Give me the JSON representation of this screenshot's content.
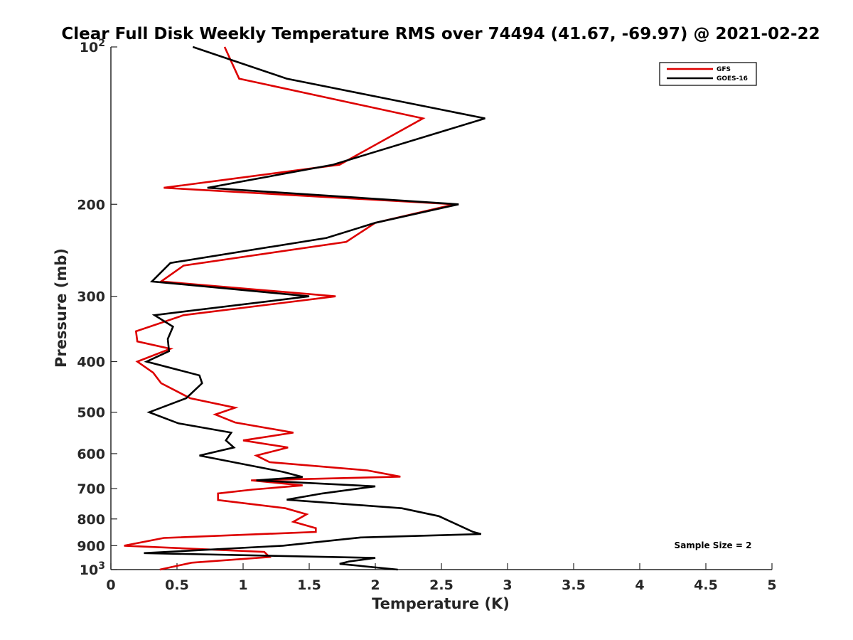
{
  "chart_data": {
    "type": "line",
    "title": "Clear Full Disk Weekly Temperature RMS over 74494 (41.67, -69.97) @ 2021-02-22",
    "xlabel": "Temperature (K)",
    "ylabel": "Pressure (mb)",
    "xlim": [
      0,
      5
    ],
    "ylim": [
      100,
      1000
    ],
    "yscale": "log",
    "yreverse": true,
    "x_ticks": [
      0,
      0.5,
      1,
      1.5,
      2,
      2.5,
      3,
      3.5,
      4,
      4.5,
      5
    ],
    "x_tick_labels": [
      "0",
      "0.5",
      "1",
      "1.5",
      "2",
      "2.5",
      "3",
      "3.5",
      "4",
      "4.5",
      "5"
    ],
    "y_ticks": [
      100,
      200,
      300,
      400,
      500,
      600,
      700,
      800,
      900,
      1000
    ],
    "y_tick_labels": [
      {
        "base": "10",
        "exp": "2"
      },
      {
        "base": "200",
        "exp": ""
      },
      {
        "base": "300",
        "exp": ""
      },
      {
        "base": "400",
        "exp": ""
      },
      {
        "base": "500",
        "exp": ""
      },
      {
        "base": "600",
        "exp": ""
      },
      {
        "base": "700",
        "exp": ""
      },
      {
        "base": "800",
        "exp": ""
      },
      {
        "base": "900",
        "exp": ""
      },
      {
        "base": "10",
        "exp": "3"
      }
    ],
    "legend_position": "top-right",
    "annotation": "Sample Size = 2",
    "series": [
      {
        "name": "GFS",
        "color": "#dd0000",
        "points": [
          [
            0.86,
            100
          ],
          [
            0.97,
            115
          ],
          [
            2.36,
            137
          ],
          [
            1.73,
            168
          ],
          [
            0.4,
            186
          ],
          [
            2.6,
            200
          ],
          [
            2.0,
            217
          ],
          [
            1.78,
            236
          ],
          [
            0.55,
            262
          ],
          [
            0.38,
            281
          ],
          [
            1.7,
            300
          ],
          [
            0.55,
            326
          ],
          [
            0.19,
            350
          ],
          [
            0.2,
            366
          ],
          [
            0.45,
            378
          ],
          [
            0.2,
            400
          ],
          [
            0.32,
            420
          ],
          [
            0.38,
            440
          ],
          [
            0.6,
            470
          ],
          [
            0.94,
            490
          ],
          [
            0.79,
            505
          ],
          [
            0.94,
            523
          ],
          [
            1.38,
            547
          ],
          [
            1.0,
            566
          ],
          [
            1.34,
            584
          ],
          [
            1.1,
            605
          ],
          [
            1.2,
            623
          ],
          [
            1.94,
            646
          ],
          [
            2.19,
            664
          ],
          [
            1.06,
            675
          ],
          [
            1.45,
            690
          ],
          [
            1.07,
            703
          ],
          [
            0.81,
            715
          ],
          [
            0.81,
            736
          ],
          [
            1.32,
            763
          ],
          [
            1.48,
            784
          ],
          [
            1.38,
            810
          ],
          [
            1.55,
            833
          ],
          [
            1.55,
            847
          ],
          [
            0.4,
            870
          ],
          [
            0.1,
            900
          ],
          [
            1.16,
            925
          ],
          [
            1.2,
            946
          ],
          [
            0.61,
            970
          ],
          [
            0.37,
            1000
          ]
        ]
      },
      {
        "name": "GOES-16",
        "color": "#000000",
        "points": [
          [
            0.62,
            100
          ],
          [
            1.33,
            115
          ],
          [
            2.83,
            137
          ],
          [
            1.68,
            168
          ],
          [
            0.73,
            186
          ],
          [
            2.63,
            200
          ],
          [
            2.0,
            217
          ],
          [
            1.63,
            232
          ],
          [
            0.45,
            259
          ],
          [
            0.31,
            281
          ],
          [
            1.5,
            300
          ],
          [
            0.33,
            326
          ],
          [
            0.47,
            343
          ],
          [
            0.43,
            362
          ],
          [
            0.44,
            382
          ],
          [
            0.27,
            400
          ],
          [
            0.67,
            425
          ],
          [
            0.69,
            440
          ],
          [
            0.57,
            470
          ],
          [
            0.29,
            500
          ],
          [
            0.51,
            525
          ],
          [
            0.91,
            547
          ],
          [
            0.87,
            566
          ],
          [
            0.93,
            584
          ],
          [
            0.67,
            605
          ],
          [
            1.3,
            650
          ],
          [
            1.45,
            665
          ],
          [
            1.1,
            675
          ],
          [
            2.0,
            693
          ],
          [
            1.6,
            715
          ],
          [
            1.33,
            735
          ],
          [
            2.2,
            763
          ],
          [
            2.48,
            790
          ],
          [
            2.74,
            847
          ],
          [
            2.8,
            855
          ],
          [
            1.89,
            868
          ],
          [
            1.3,
            900
          ],
          [
            0.25,
            930
          ],
          [
            2.0,
            950
          ],
          [
            1.8,
            965
          ],
          [
            1.73,
            975
          ],
          [
            2.17,
            1000
          ]
        ]
      }
    ]
  }
}
